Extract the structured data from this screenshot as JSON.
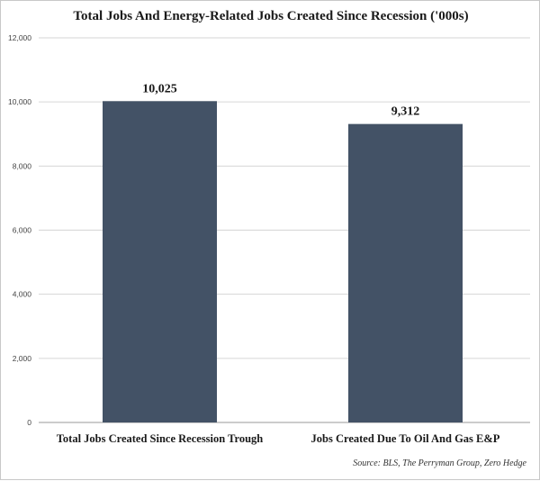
{
  "chart_data": {
    "type": "bar",
    "title": "Total Jobs And Energy-Related Jobs Created Since Recession ('000s)",
    "categories": [
      "Total Jobs Created Since Recession Trough",
      "Jobs Created Due To Oil And Gas E&P"
    ],
    "values": [
      10025,
      9312
    ],
    "value_labels": [
      "10,025",
      "9,312"
    ],
    "ylim": [
      0,
      12000
    ],
    "yticks": [
      0,
      2000,
      4000,
      6000,
      8000,
      10000,
      12000
    ],
    "ytick_labels": [
      "0",
      "2,000",
      "4,000",
      "6,000",
      "8,000",
      "10,000",
      "12,000"
    ],
    "xlabel": "",
    "ylabel": "",
    "grid": true,
    "bar_color": "#435266",
    "grid_color": "#d6d6d6"
  },
  "source": "Source: BLS, The Perryman Group, Zero Hedge"
}
